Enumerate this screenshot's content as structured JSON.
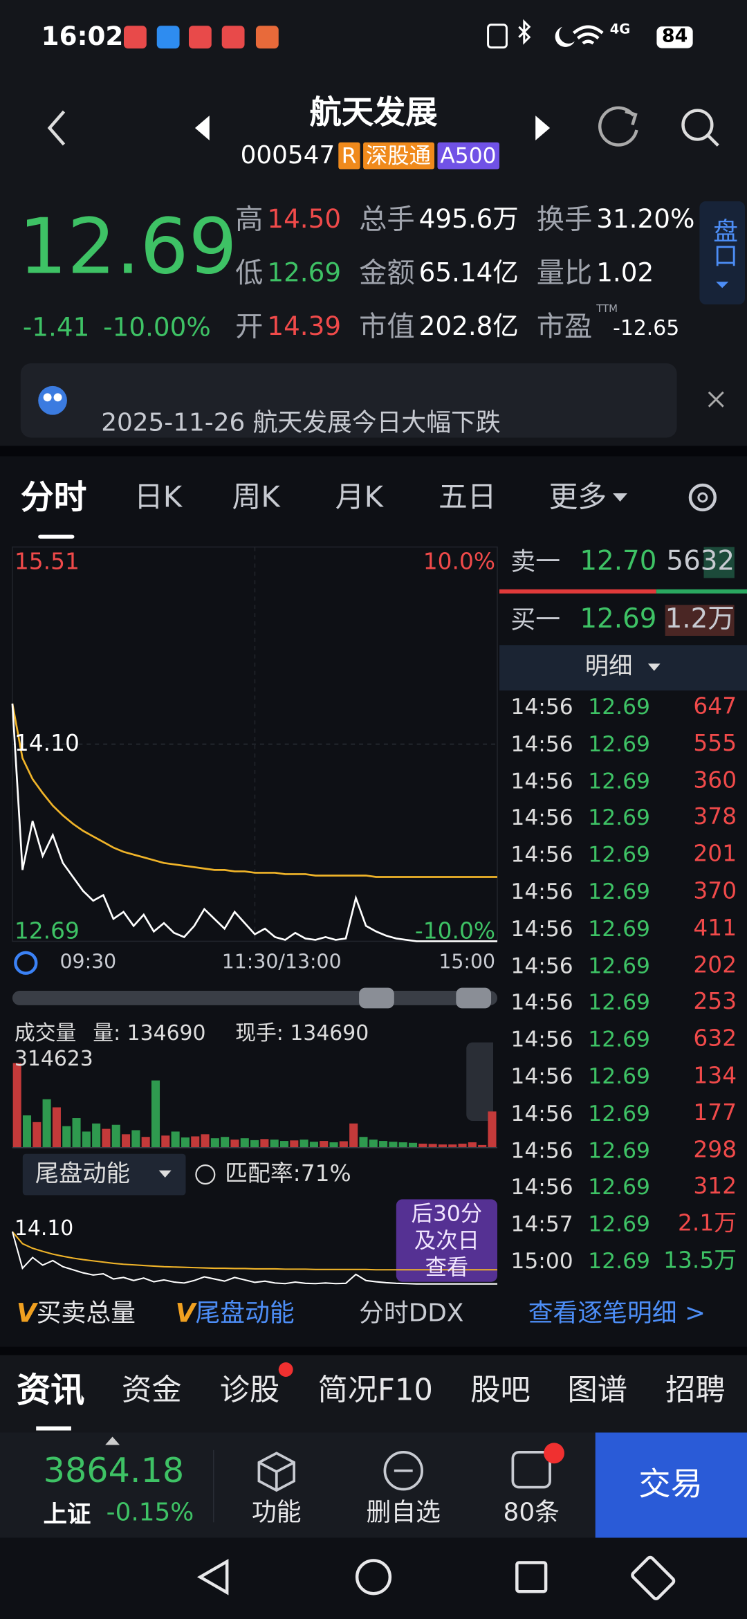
{
  "status_bar": {
    "time": "16:02",
    "network": "4G",
    "battery": "84"
  },
  "header": {
    "name": "航天发展",
    "code": "000547",
    "tags": [
      {
        "text": "R",
        "color": "#f08a1c"
      },
      {
        "text": "深股通",
        "color": "#f08a1c"
      },
      {
        "text": "A500",
        "color": "#7052e6"
      }
    ]
  },
  "quote": {
    "price": "12.69",
    "change": "-1.41",
    "change_pct": "-10.00%",
    "side_tab": "盘口",
    "stats": [
      {
        "label": "高",
        "value": "14.50",
        "color": "#f04a4a"
      },
      {
        "label": "总手",
        "value": "495.6万",
        "color": "#ffffff"
      },
      {
        "label": "换手",
        "value": "31.20%",
        "color": "#ffffff"
      },
      {
        "label": "低",
        "value": "12.69",
        "color": "#3ec265"
      },
      {
        "label": "金额",
        "value": "65.14亿",
        "color": "#ffffff"
      },
      {
        "label": "量比",
        "value": "1.02",
        "color": "#ffffff"
      },
      {
        "label": "开",
        "value": "14.39",
        "color": "#f04a4a"
      },
      {
        "label": "市值",
        "value": "202.8亿",
        "color": "#ffffff"
      },
      {
        "label": "市盈",
        "value": "-12.65",
        "color": "#ffffff"
      }
    ],
    "pe_note": "TTM"
  },
  "news": {
    "text": "2025-11-26 航天发展今日大幅下跌"
  },
  "tabs": [
    "分时",
    "日K",
    "周K",
    "月K",
    "五日",
    "更多"
  ],
  "intraday": {
    "high": 15.51,
    "low": 12.69,
    "high_pct": "10.0%",
    "low_pct": "-10.0%",
    "prev_close": "14.10",
    "times": [
      "09:30",
      "11:30/13:00",
      "15:00"
    ],
    "price": [
      14.39,
      13.2,
      13.55,
      13.3,
      13.45,
      13.25,
      13.15,
      13.05,
      12.98,
      13.02,
      12.85,
      12.9,
      12.8,
      12.88,
      12.76,
      12.82,
      12.75,
      12.72,
      12.8,
      12.92,
      12.85,
      12.78,
      12.9,
      12.82,
      12.74,
      12.78,
      12.72,
      12.7,
      12.75,
      12.71,
      12.7,
      12.72,
      12.7,
      12.71,
      13.0,
      12.8,
      12.76,
      12.73,
      12.71,
      12.7,
      12.69,
      12.69,
      12.69,
      12.69,
      12.69,
      12.69,
      12.69,
      12.69,
      12.69
    ],
    "average": [
      14.39,
      14.0,
      13.85,
      13.75,
      13.66,
      13.59,
      13.53,
      13.48,
      13.44,
      13.4,
      13.36,
      13.33,
      13.31,
      13.29,
      13.27,
      13.25,
      13.24,
      13.23,
      13.22,
      13.21,
      13.2,
      13.2,
      13.19,
      13.19,
      13.18,
      13.18,
      13.18,
      13.17,
      13.17,
      13.17,
      13.16,
      13.16,
      13.16,
      13.16,
      13.16,
      13.16,
      13.15,
      13.15,
      13.15,
      13.15,
      13.15,
      13.15,
      13.15,
      13.15,
      13.15,
      13.15,
      13.15,
      13.15,
      13.15
    ],
    "price_color": "#ffffff",
    "average_color": "#f0b429"
  },
  "volume": {
    "title": "成交量",
    "volume_label": "量: 134690",
    "hand_label": "现手: 134690",
    "max": 314623,
    "values": [
      314623,
      120000,
      95000,
      180000,
      150000,
      80000,
      110000,
      60000,
      90000,
      70000,
      85000,
      50000,
      65000,
      40000,
      250000,
      45000,
      60000,
      38000,
      42000,
      50000,
      35000,
      40000,
      30000,
      35000,
      28000,
      32000,
      30000,
      25000,
      27000,
      30000,
      22000,
      25000,
      20000,
      24000,
      90000,
      40000,
      30000,
      25000,
      22000,
      20000,
      18000,
      15000,
      14000,
      12000,
      12000,
      15000,
      20000,
      10000,
      134690
    ]
  },
  "tail": {
    "dropdown": "尾盘动能",
    "match": "匹配率:71%",
    "prev_close": "14.10",
    "promo": [
      "后30分",
      "及次日",
      "查看"
    ]
  },
  "order_book": {
    "sell": {
      "label": "卖一",
      "price": "12.70",
      "volume": "5632"
    },
    "buy": {
      "label": "买一",
      "price": "12.69",
      "volume": "1.2万"
    },
    "detail": "明细"
  },
  "trades": [
    {
      "time": "14:56",
      "price": "12.69",
      "volume": "647",
      "color": "#f04a4a"
    },
    {
      "time": "14:56",
      "price": "12.69",
      "volume": "555",
      "color": "#f04a4a"
    },
    {
      "time": "14:56",
      "price": "12.69",
      "volume": "360",
      "color": "#f04a4a"
    },
    {
      "time": "14:56",
      "price": "12.69",
      "volume": "378",
      "color": "#f04a4a"
    },
    {
      "time": "14:56",
      "price": "12.69",
      "volume": "201",
      "color": "#f04a4a"
    },
    {
      "time": "14:56",
      "price": "12.69",
      "volume": "370",
      "color": "#f04a4a"
    },
    {
      "time": "14:56",
      "price": "12.69",
      "volume": "411",
      "color": "#f04a4a"
    },
    {
      "time": "14:56",
      "price": "12.69",
      "volume": "202",
      "color": "#f04a4a"
    },
    {
      "time": "14:56",
      "price": "12.69",
      "volume": "253",
      "color": "#f04a4a"
    },
    {
      "time": "14:56",
      "price": "12.69",
      "volume": "632",
      "color": "#f04a4a"
    },
    {
      "time": "14:56",
      "price": "12.69",
      "volume": "134",
      "color": "#f04a4a"
    },
    {
      "time": "14:56",
      "price": "12.69",
      "volume": "177",
      "color": "#f04a4a"
    },
    {
      "time": "14:56",
      "price": "12.69",
      "volume": "298",
      "color": "#f04a4a"
    },
    {
      "time": "14:56",
      "price": "12.69",
      "volume": "312",
      "color": "#f04a4a"
    },
    {
      "time": "14:57",
      "price": "12.69",
      "volume": "2.1万",
      "color": "#f04a4a"
    },
    {
      "time": "15:00",
      "price": "12.69",
      "volume": "13.5万",
      "color": "#3ec265"
    }
  ],
  "links": [
    {
      "mark": "V",
      "text": "买卖总量"
    },
    {
      "mark": "V",
      "text": "尾盘动能"
    },
    {
      "text": "分时DDX"
    },
    {
      "text": "查看逐笔明细 >"
    }
  ],
  "bottom_tabs": [
    "资讯",
    "资金",
    "诊股",
    "简况F10",
    "股吧",
    "图谱",
    "招聘"
  ],
  "footer": {
    "index_value": "3864.18",
    "index_name": "上证",
    "index_change": "-0.15%",
    "buttons": [
      "功能",
      "删自选",
      "80条"
    ],
    "trade": "交易"
  }
}
